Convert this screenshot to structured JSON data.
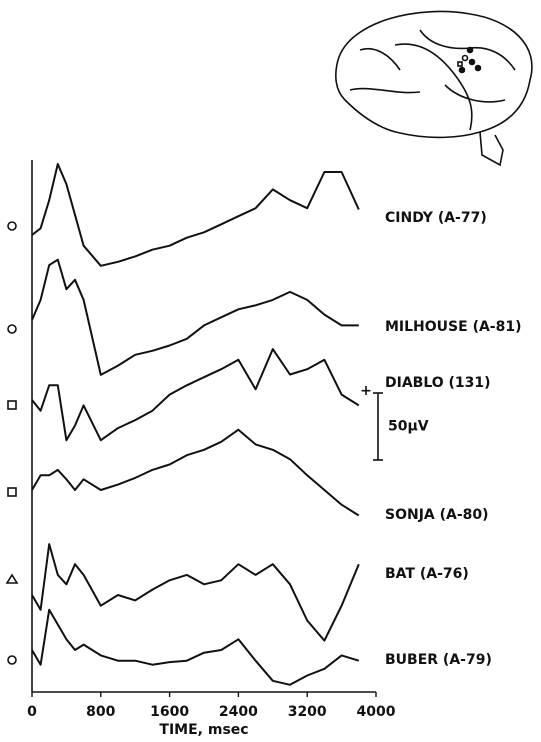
{
  "chart_data": {
    "type": "line",
    "x": [
      0,
      100,
      200,
      300,
      400,
      500,
      600,
      800,
      1000,
      1200,
      1400,
      1600,
      1800,
      2000,
      2200,
      2400,
      2600,
      2800,
      3000,
      3200,
      3400,
      3600,
      3800
    ],
    "series": [
      {
        "name": "CINDY (A-77)",
        "color": "#111111",
        "values": [
          0,
          5,
          26,
          53,
          38,
          15,
          -8,
          -23,
          -20,
          -16,
          -11,
          -8,
          -2,
          2,
          8,
          14,
          20,
          34,
          26,
          20,
          47,
          47,
          19
        ]
      },
      {
        "name": "MILHOUSE (A-81)",
        "color": "#111111",
        "values": [
          0,
          15,
          41,
          45,
          23,
          30,
          15,
          -41,
          -34,
          -26,
          -23,
          -19,
          -14,
          -4,
          2,
          8,
          11,
          15,
          21,
          15,
          4,
          -4,
          -4
        ]
      },
      {
        "name": "DIABLO (131)",
        "color": "#111111",
        "values": [
          0,
          -8,
          11,
          11,
          -30,
          -19,
          -4,
          -30,
          -21,
          -15,
          -8,
          4,
          11,
          17,
          23,
          30,
          8,
          38,
          19,
          23,
          30,
          4,
          -4
        ]
      },
      {
        "name": "SONJA (A-80)",
        "color": "#111111",
        "values": [
          0,
          11,
          11,
          15,
          8,
          0,
          8,
          0,
          4,
          9,
          15,
          19,
          26,
          30,
          36,
          45,
          34,
          30,
          23,
          11,
          0,
          -11,
          -19
        ]
      },
      {
        "name": "BAT (A-76)",
        "color": "#111111",
        "values": [
          0,
          -11,
          38,
          15,
          8,
          23,
          15,
          -8,
          0,
          -4,
          4,
          11,
          15,
          8,
          11,
          23,
          15,
          23,
          8,
          -19,
          -34,
          -8,
          23
        ]
      },
      {
        "name": "BUBER (A-79)",
        "color": "#111111",
        "values": [
          0,
          -11,
          30,
          19,
          8,
          0,
          4,
          -4,
          -8,
          -8,
          -11,
          -9,
          -8,
          -2,
          0,
          8,
          -8,
          -23,
          -26,
          -19,
          -14,
          -4,
          -8
        ]
      }
    ],
    "xlim": [
      0,
      4000
    ],
    "xticks": [
      0,
      800,
      1600,
      2400,
      3200,
      4000
    ],
    "xlabel": "TIME, msec",
    "scale_bar": {
      "value": 50,
      "label": "50µV",
      "sign": "+"
    }
  }
}
